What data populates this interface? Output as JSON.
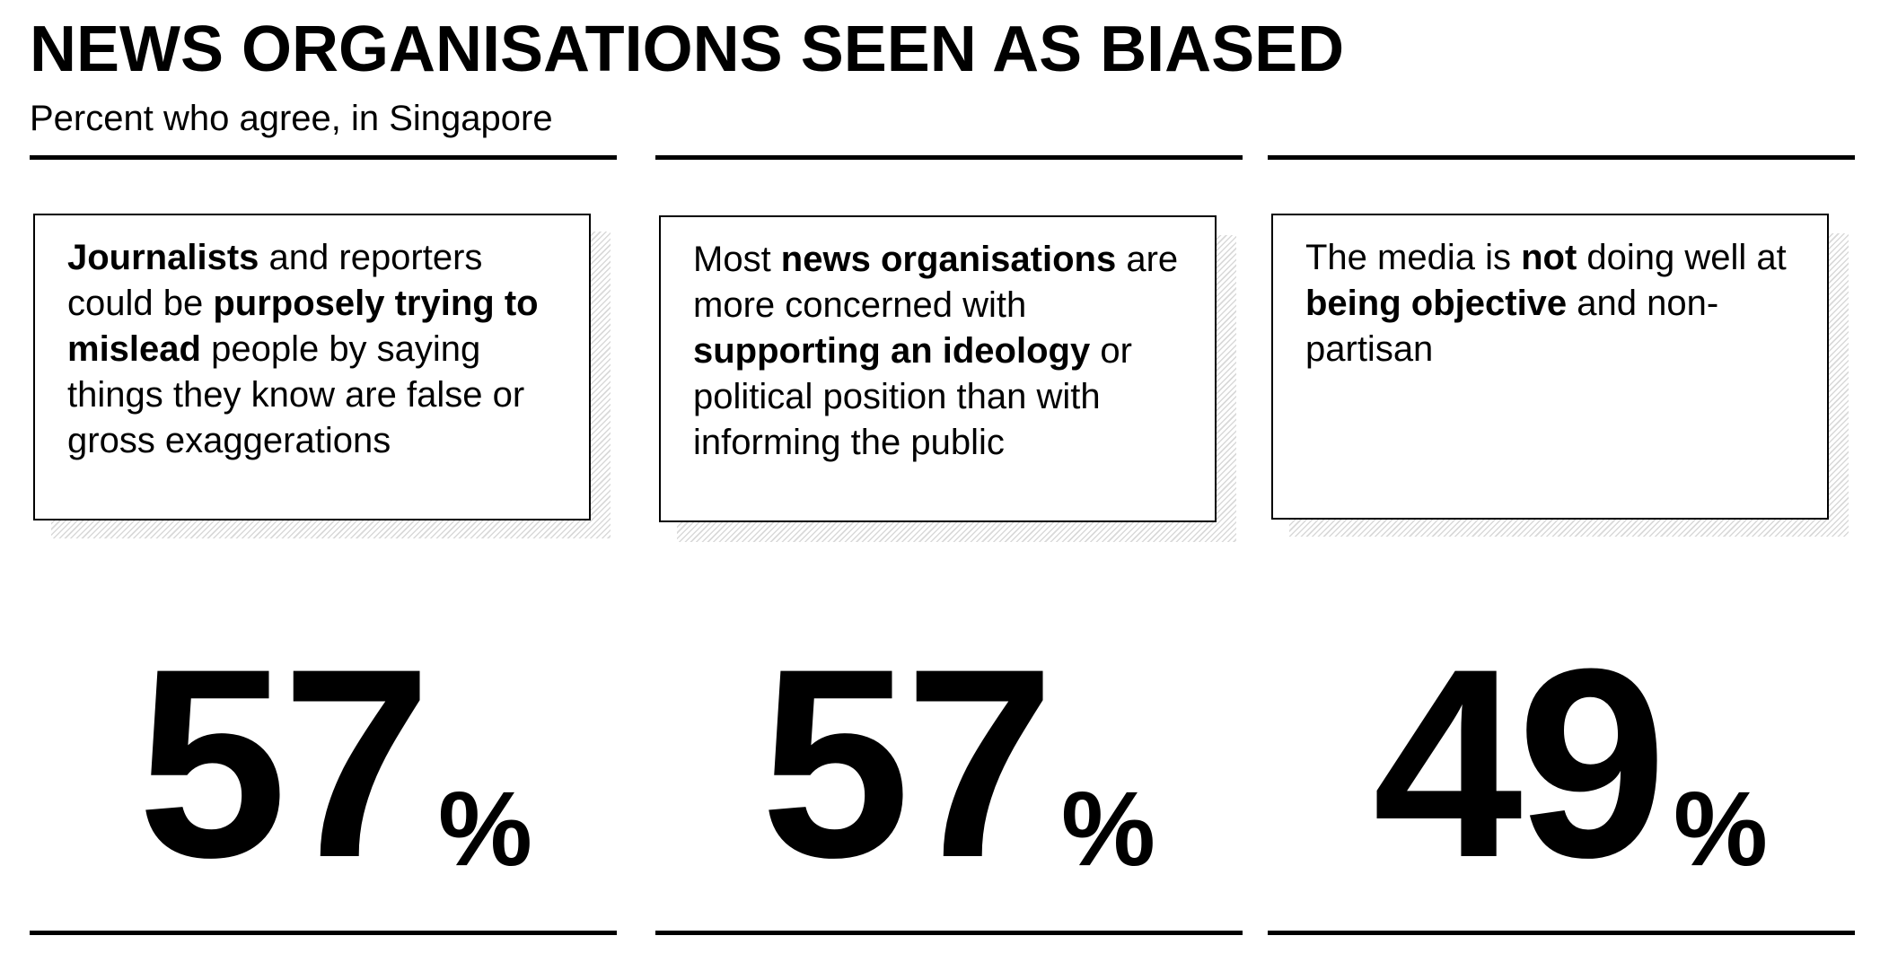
{
  "chart_data": {
    "type": "table",
    "title": "NEWS ORGANISATIONS SEEN AS BIASED",
    "subtitle": "Percent who agree, in Singapore",
    "unit": "%",
    "statements": [
      {
        "parts": [
          {
            "text": "Journalists",
            "bold": true
          },
          {
            "text": " and reporters could be ",
            "bold": false
          },
          {
            "text": "purposely trying to mislead",
            "bold": true
          },
          {
            "text": " people by saying things they know are false or gross exaggerations",
            "bold": false
          }
        ],
        "value": 57
      },
      {
        "parts": [
          {
            "text": "Most ",
            "bold": false
          },
          {
            "text": "news organisations",
            "bold": true
          },
          {
            "text": " are more concerned with ",
            "bold": false
          },
          {
            "text": "supporting an ideology",
            "bold": true
          },
          {
            "text": " or political position than with informing the public",
            "bold": false
          }
        ],
        "value": 57
      },
      {
        "parts": [
          {
            "text": "The media is ",
            "bold": false
          },
          {
            "text": "not",
            "bold": true
          },
          {
            "text": " doing well at ",
            "bold": false
          },
          {
            "text": "being objective",
            "bold": true
          },
          {
            "text": " and non-partisan",
            "bold": false
          }
        ],
        "value": 49
      }
    ]
  }
}
